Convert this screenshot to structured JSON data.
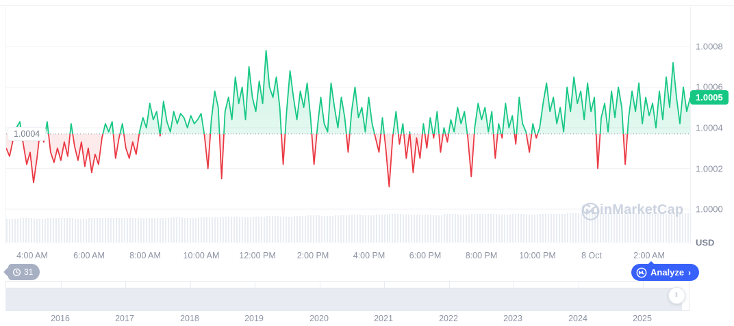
{
  "price_axis": {
    "ticks": [
      "1.0008",
      "1.0006",
      "1.0004",
      "1.0002",
      "1.0000"
    ],
    "unit_label": "USD",
    "current_price_badge": "1.0005",
    "open_price_label": "1.0004"
  },
  "time_axis": {
    "labels": [
      "4:00 AM",
      "6:00 AM",
      "8:00 AM",
      "10:00 AM",
      "12:00 PM",
      "2:00 PM",
      "4:00 PM",
      "6:00 PM",
      "8:00 PM",
      "10:00 PM",
      "8 Oct",
      "2:00 AM"
    ]
  },
  "navigator": {
    "years": [
      "2016",
      "2017",
      "2018",
      "2019",
      "2020",
      "2021",
      "2022",
      "2023",
      "2024",
      "2025"
    ],
    "handle_glyph": "‖"
  },
  "history_badge": {
    "count": "31",
    "icon": "clock-history-icon"
  },
  "analyze_button": {
    "label": "Analyze",
    "chevron": "›",
    "icon": "coinmarketcap-logo-icon"
  },
  "watermark": {
    "text": "CoinMarketCap",
    "icon": "coinmarketcap-logo-icon"
  },
  "colors": {
    "up": "#16c784",
    "down": "#ea3943",
    "up_fill": "rgba(22,199,132,0.14)",
    "down_fill": "rgba(234,57,67,0.10)",
    "badge_bg": "#16c784",
    "analyze_bg": "#3861fb",
    "axis_text": "#8c93a3",
    "grid": "#f0f2f6",
    "threshold_dots": "#8f96a5",
    "volume": "#e9edf3",
    "watermark": "#ccd3e0"
  },
  "chart_data": {
    "type": "line",
    "title": "Stablecoin price intraday chart, USD",
    "x_ticks": [
      "4:00 AM",
      "6:00 AM",
      "8:00 AM",
      "10:00 AM",
      "12:00 PM",
      "2:00 PM",
      "4:00 PM",
      "6:00 PM",
      "8:00 PM",
      "10:00 PM",
      "8 Oct",
      "2:00 AM"
    ],
    "y_ticks": [
      1.0008,
      1.0006,
      1.0004,
      1.0002,
      1.0
    ],
    "y_axis_range": [
      0.99983,
      1.00099
    ],
    "threshold_open_price": 1.00037,
    "last_price_label": "1.0005",
    "legend": "off",
    "grid": "horizontal",
    "points": [
      1.0003,
      1.00026,
      1.00034,
      1.0004,
      1.00043,
      1.00032,
      1.00022,
      1.00028,
      1.00013,
      1.00025,
      1.0004,
      1.00033,
      1.00043,
      1.00028,
      1.00023,
      1.0003,
      1.00024,
      1.00033,
      1.00026,
      1.00042,
      1.00031,
      1.00024,
      1.00033,
      1.00021,
      1.0003,
      1.00018,
      1.00027,
      1.00022,
      1.00035,
      1.00042,
      1.00038,
      1.00043,
      1.00025,
      1.00035,
      1.00042,
      1.0003,
      1.00025,
      1.00033,
      1.00027,
      1.00038,
      1.00045,
      1.0004,
      1.00052,
      1.00044,
      1.00048,
      1.00036,
      1.00053,
      1.00043,
      1.00038,
      1.00048,
      1.00042,
      1.00047,
      1.00045,
      1.0004,
      1.00046,
      1.00042,
      1.00044,
      1.00047,
      1.00036,
      1.0002,
      1.00044,
      1.00058,
      1.0005,
      1.00015,
      1.00048,
      1.00055,
      1.00044,
      1.00065,
      1.00052,
      1.0006,
      1.00044,
      1.0007,
      1.00055,
      1.00048,
      1.00063,
      1.00052,
      1.00078,
      1.0006,
      1.00055,
      1.00065,
      1.0005,
      1.00022,
      1.00048,
      1.00068,
      1.00055,
      1.00044,
      1.00058,
      1.0005,
      1.00062,
      1.00045,
      1.00022,
      1.0004,
      1.00055,
      1.00042,
      1.00038,
      1.00062,
      1.0005,
      1.0004,
      1.00055,
      1.00045,
      1.00028,
      1.00048,
      1.0006,
      1.00045,
      1.0005,
      1.00038,
      1.00055,
      1.00042,
      1.00035,
      1.00028,
      1.00045,
      1.0003,
      1.00011,
      1.00035,
      1.00048,
      1.00032,
      1.00042,
      1.00025,
      1.00038,
      1.00018,
      1.00035,
      1.00025,
      1.00042,
      1.0003,
      1.00045,
      1.00035,
      1.00048,
      1.00028,
      1.0004,
      1.00033,
      1.00044,
      1.00038,
      1.0005,
      1.00042,
      1.00048,
      1.00035,
      1.00016,
      1.0004,
      1.00052,
      1.00044,
      1.0005,
      1.00038,
      1.00048,
      1.00025,
      1.00042,
      1.00035,
      1.00052,
      1.0004,
      1.00046,
      1.00032,
      1.00055,
      1.00042,
      1.00038,
      1.00028,
      1.00042,
      1.00035,
      1.0004,
      1.00052,
      1.00062,
      1.00048,
      1.00055,
      1.00042,
      1.0005,
      1.00038,
      1.0006,
      1.00048,
      1.00065,
      1.00052,
      1.00058,
      1.00044,
      1.00062,
      1.00048,
      1.00055,
      1.0002,
      1.00045,
      1.00052,
      1.00038,
      1.00058,
      1.00045,
      1.0006,
      1.0005,
      1.00022,
      1.00045,
      1.00058,
      1.00048,
      1.00062,
      1.00042,
      1.00055,
      1.00046,
      1.00052,
      1.0004,
      1.00058,
      1.00044,
      1.00065,
      1.0005,
      1.00072,
      1.00055,
      1.00042,
      1.0006,
      1.00048,
      1.00055
    ],
    "volume_profile": [
      0.8,
      0.81,
      0.8,
      0.82,
      0.81,
      0.8,
      0.82,
      0.83,
      0.82,
      0.81,
      0.83,
      0.82,
      0.84,
      0.83,
      0.85,
      0.84,
      0.86,
      0.85,
      0.87,
      0.88,
      0.86,
      0.88,
      0.9,
      0.89,
      0.91,
      0.93,
      0.92,
      0.94,
      0.95,
      0.93,
      0.94,
      0.92,
      0.95,
      0.94,
      0.96,
      0.95,
      0.93,
      0.95,
      0.94,
      0.96,
      0.95,
      0.97,
      0.96,
      0.98,
      0.97,
      0.95,
      0.97,
      0.98,
      0.96,
      0.97
    ]
  }
}
